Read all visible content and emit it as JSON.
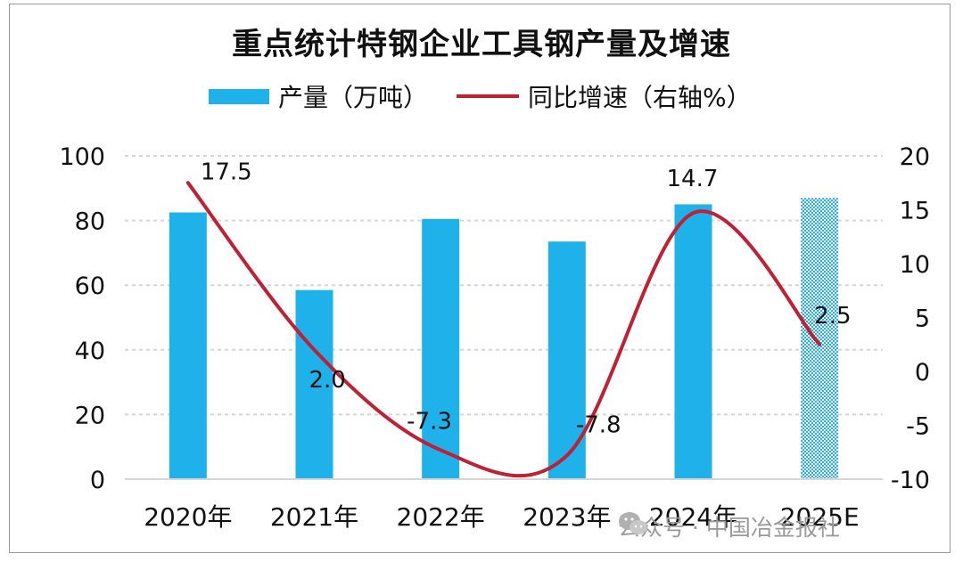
{
  "chart_data": {
    "type": "bar+line",
    "title": "重点统计特钢企业工具钢产量及增速",
    "categories": [
      "2020年",
      "2021年",
      "2022年",
      "2023年",
      "2024年",
      "2025E"
    ],
    "series": [
      {
        "name": "产量（万吨）",
        "type": "bar",
        "axis": "left",
        "values": [
          82.5,
          58.5,
          80.5,
          73.5,
          85,
          87
        ],
        "color": "#1fb1ea",
        "last_bar_pattern": "checkered"
      },
      {
        "name": "同比增速（右轴%）",
        "type": "line",
        "axis": "right",
        "values": [
          17.5,
          2.0,
          -7.3,
          -7.8,
          14.7,
          2.5
        ],
        "labels": [
          "17.5",
          "2.0",
          "-7.3",
          "-7.8",
          "14.7",
          "2.5"
        ],
        "color": "#c11f33"
      }
    ],
    "left_axis": {
      "min": 0,
      "max": 100,
      "ticks": [
        "0",
        "20",
        "40",
        "60",
        "80",
        "100"
      ]
    },
    "right_axis": {
      "min": -10,
      "max": 20,
      "ticks": [
        "-10",
        "-5",
        "0",
        "5",
        "10",
        "15",
        "20"
      ]
    },
    "grid": "horizontal dashed",
    "legend": "top"
  },
  "legend": {
    "bar_label": "产量（万吨）",
    "line_label": "同比增速（右轴%）"
  },
  "watermark": {
    "text": "公众号 · 中国冶金报社",
    "icon": "wechat-icon"
  }
}
